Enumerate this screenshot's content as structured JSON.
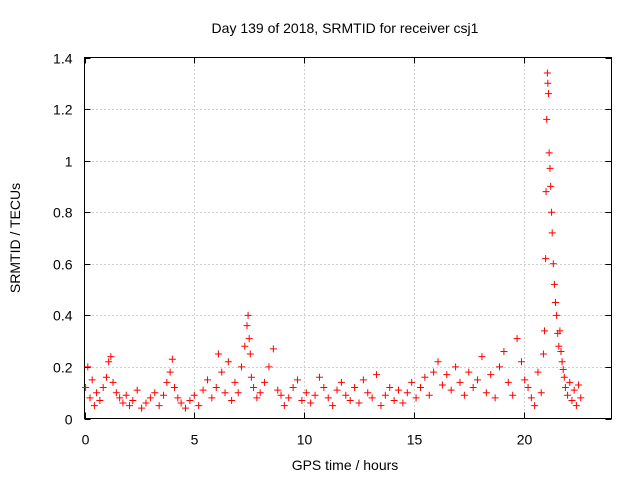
{
  "chart_data": {
    "type": "scatter",
    "title": "Day 139 of 2018, SRMTID for receiver csj1",
    "xlabel": "GPS time / hours",
    "ylabel": "SRMTID / TECUs",
    "xlim": [
      0,
      24
    ],
    "ylim": [
      0,
      1.4
    ],
    "xticks": [
      0,
      5,
      10,
      15,
      20
    ],
    "yticks": [
      0,
      0.2,
      0.4,
      0.6,
      0.8,
      1,
      1.2,
      1.4
    ],
    "xtick_labels": [
      "0",
      "5",
      "10",
      "15",
      "20"
    ],
    "ytick_labels": [
      "0",
      "0.2",
      "0.4",
      "0.6",
      "0.8",
      "1",
      "1.2",
      "1.4"
    ],
    "grid": true,
    "marker": "+",
    "series": [
      {
        "name": "csj1",
        "color": "#ff0000",
        "x": [
          0.05,
          0.15,
          0.25,
          0.35,
          0.45,
          0.55,
          0.7,
          0.85,
          1.0,
          1.1,
          1.2,
          1.3,
          1.45,
          1.6,
          1.75,
          1.9,
          2.05,
          2.2,
          2.4,
          2.6,
          2.8,
          3.0,
          3.2,
          3.4,
          3.6,
          3.75,
          3.9,
          4.0,
          4.1,
          4.25,
          4.4,
          4.6,
          4.8,
          5.0,
          5.2,
          5.4,
          5.6,
          5.8,
          6.0,
          6.1,
          6.25,
          6.4,
          6.55,
          6.7,
          6.85,
          7.0,
          7.15,
          7.3,
          7.4,
          7.45,
          7.5,
          7.55,
          7.6,
          7.7,
          7.85,
          8.0,
          8.2,
          8.4,
          8.6,
          8.8,
          8.95,
          9.1,
          9.3,
          9.5,
          9.7,
          9.9,
          10.1,
          10.3,
          10.5,
          10.7,
          10.9,
          11.1,
          11.3,
          11.5,
          11.7,
          11.9,
          12.1,
          12.3,
          12.5,
          12.7,
          12.9,
          13.1,
          13.3,
          13.5,
          13.7,
          13.9,
          14.1,
          14.3,
          14.5,
          14.7,
          14.9,
          15.1,
          15.3,
          15.5,
          15.7,
          15.9,
          16.1,
          16.3,
          16.5,
          16.7,
          16.9,
          17.1,
          17.3,
          17.5,
          17.7,
          17.9,
          18.1,
          18.3,
          18.5,
          18.7,
          18.9,
          19.1,
          19.3,
          19.5,
          19.7,
          19.9,
          20.05,
          20.2,
          20.35,
          20.5,
          20.65,
          20.8,
          20.9,
          20.95,
          21.0,
          21.02,
          21.05,
          21.08,
          21.1,
          21.13,
          21.16,
          21.2,
          21.23,
          21.27,
          21.3,
          21.35,
          21.4,
          21.45,
          21.5,
          21.55,
          21.6,
          21.65,
          21.7,
          21.75,
          21.8,
          21.85,
          21.9,
          22.0,
          22.1,
          22.2,
          22.3,
          22.4,
          22.5,
          22.6
        ],
        "y": [
          0.12,
          0.2,
          0.08,
          0.15,
          0.05,
          0.1,
          0.07,
          0.12,
          0.16,
          0.22,
          0.24,
          0.14,
          0.1,
          0.08,
          0.06,
          0.09,
          0.05,
          0.07,
          0.11,
          0.04,
          0.06,
          0.08,
          0.1,
          0.05,
          0.09,
          0.14,
          0.18,
          0.23,
          0.12,
          0.08,
          0.06,
          0.04,
          0.07,
          0.09,
          0.05,
          0.11,
          0.15,
          0.08,
          0.12,
          0.25,
          0.18,
          0.1,
          0.22,
          0.07,
          0.14,
          0.1,
          0.2,
          0.28,
          0.36,
          0.4,
          0.31,
          0.25,
          0.16,
          0.12,
          0.08,
          0.1,
          0.14,
          0.2,
          0.27,
          0.11,
          0.09,
          0.05,
          0.08,
          0.12,
          0.15,
          0.07,
          0.1,
          0.06,
          0.09,
          0.16,
          0.12,
          0.08,
          0.05,
          0.11,
          0.14,
          0.09,
          0.07,
          0.12,
          0.06,
          0.15,
          0.1,
          0.08,
          0.17,
          0.05,
          0.09,
          0.12,
          0.07,
          0.11,
          0.06,
          0.1,
          0.14,
          0.08,
          0.12,
          0.16,
          0.09,
          0.18,
          0.22,
          0.13,
          0.17,
          0.11,
          0.2,
          0.14,
          0.09,
          0.18,
          0.12,
          0.15,
          0.24,
          0.1,
          0.17,
          0.08,
          0.2,
          0.26,
          0.14,
          0.09,
          0.31,
          0.22,
          0.15,
          0.12,
          0.08,
          0.05,
          0.18,
          0.1,
          0.25,
          0.34,
          0.62,
          0.88,
          1.16,
          1.34,
          1.3,
          1.26,
          1.03,
          0.97,
          0.9,
          0.8,
          0.72,
          0.6,
          0.52,
          0.45,
          0.4,
          0.33,
          0.28,
          0.34,
          0.26,
          0.22,
          0.19,
          0.16,
          0.12,
          0.09,
          0.14,
          0.07,
          0.11,
          0.05,
          0.13,
          0.08
        ]
      }
    ]
  }
}
